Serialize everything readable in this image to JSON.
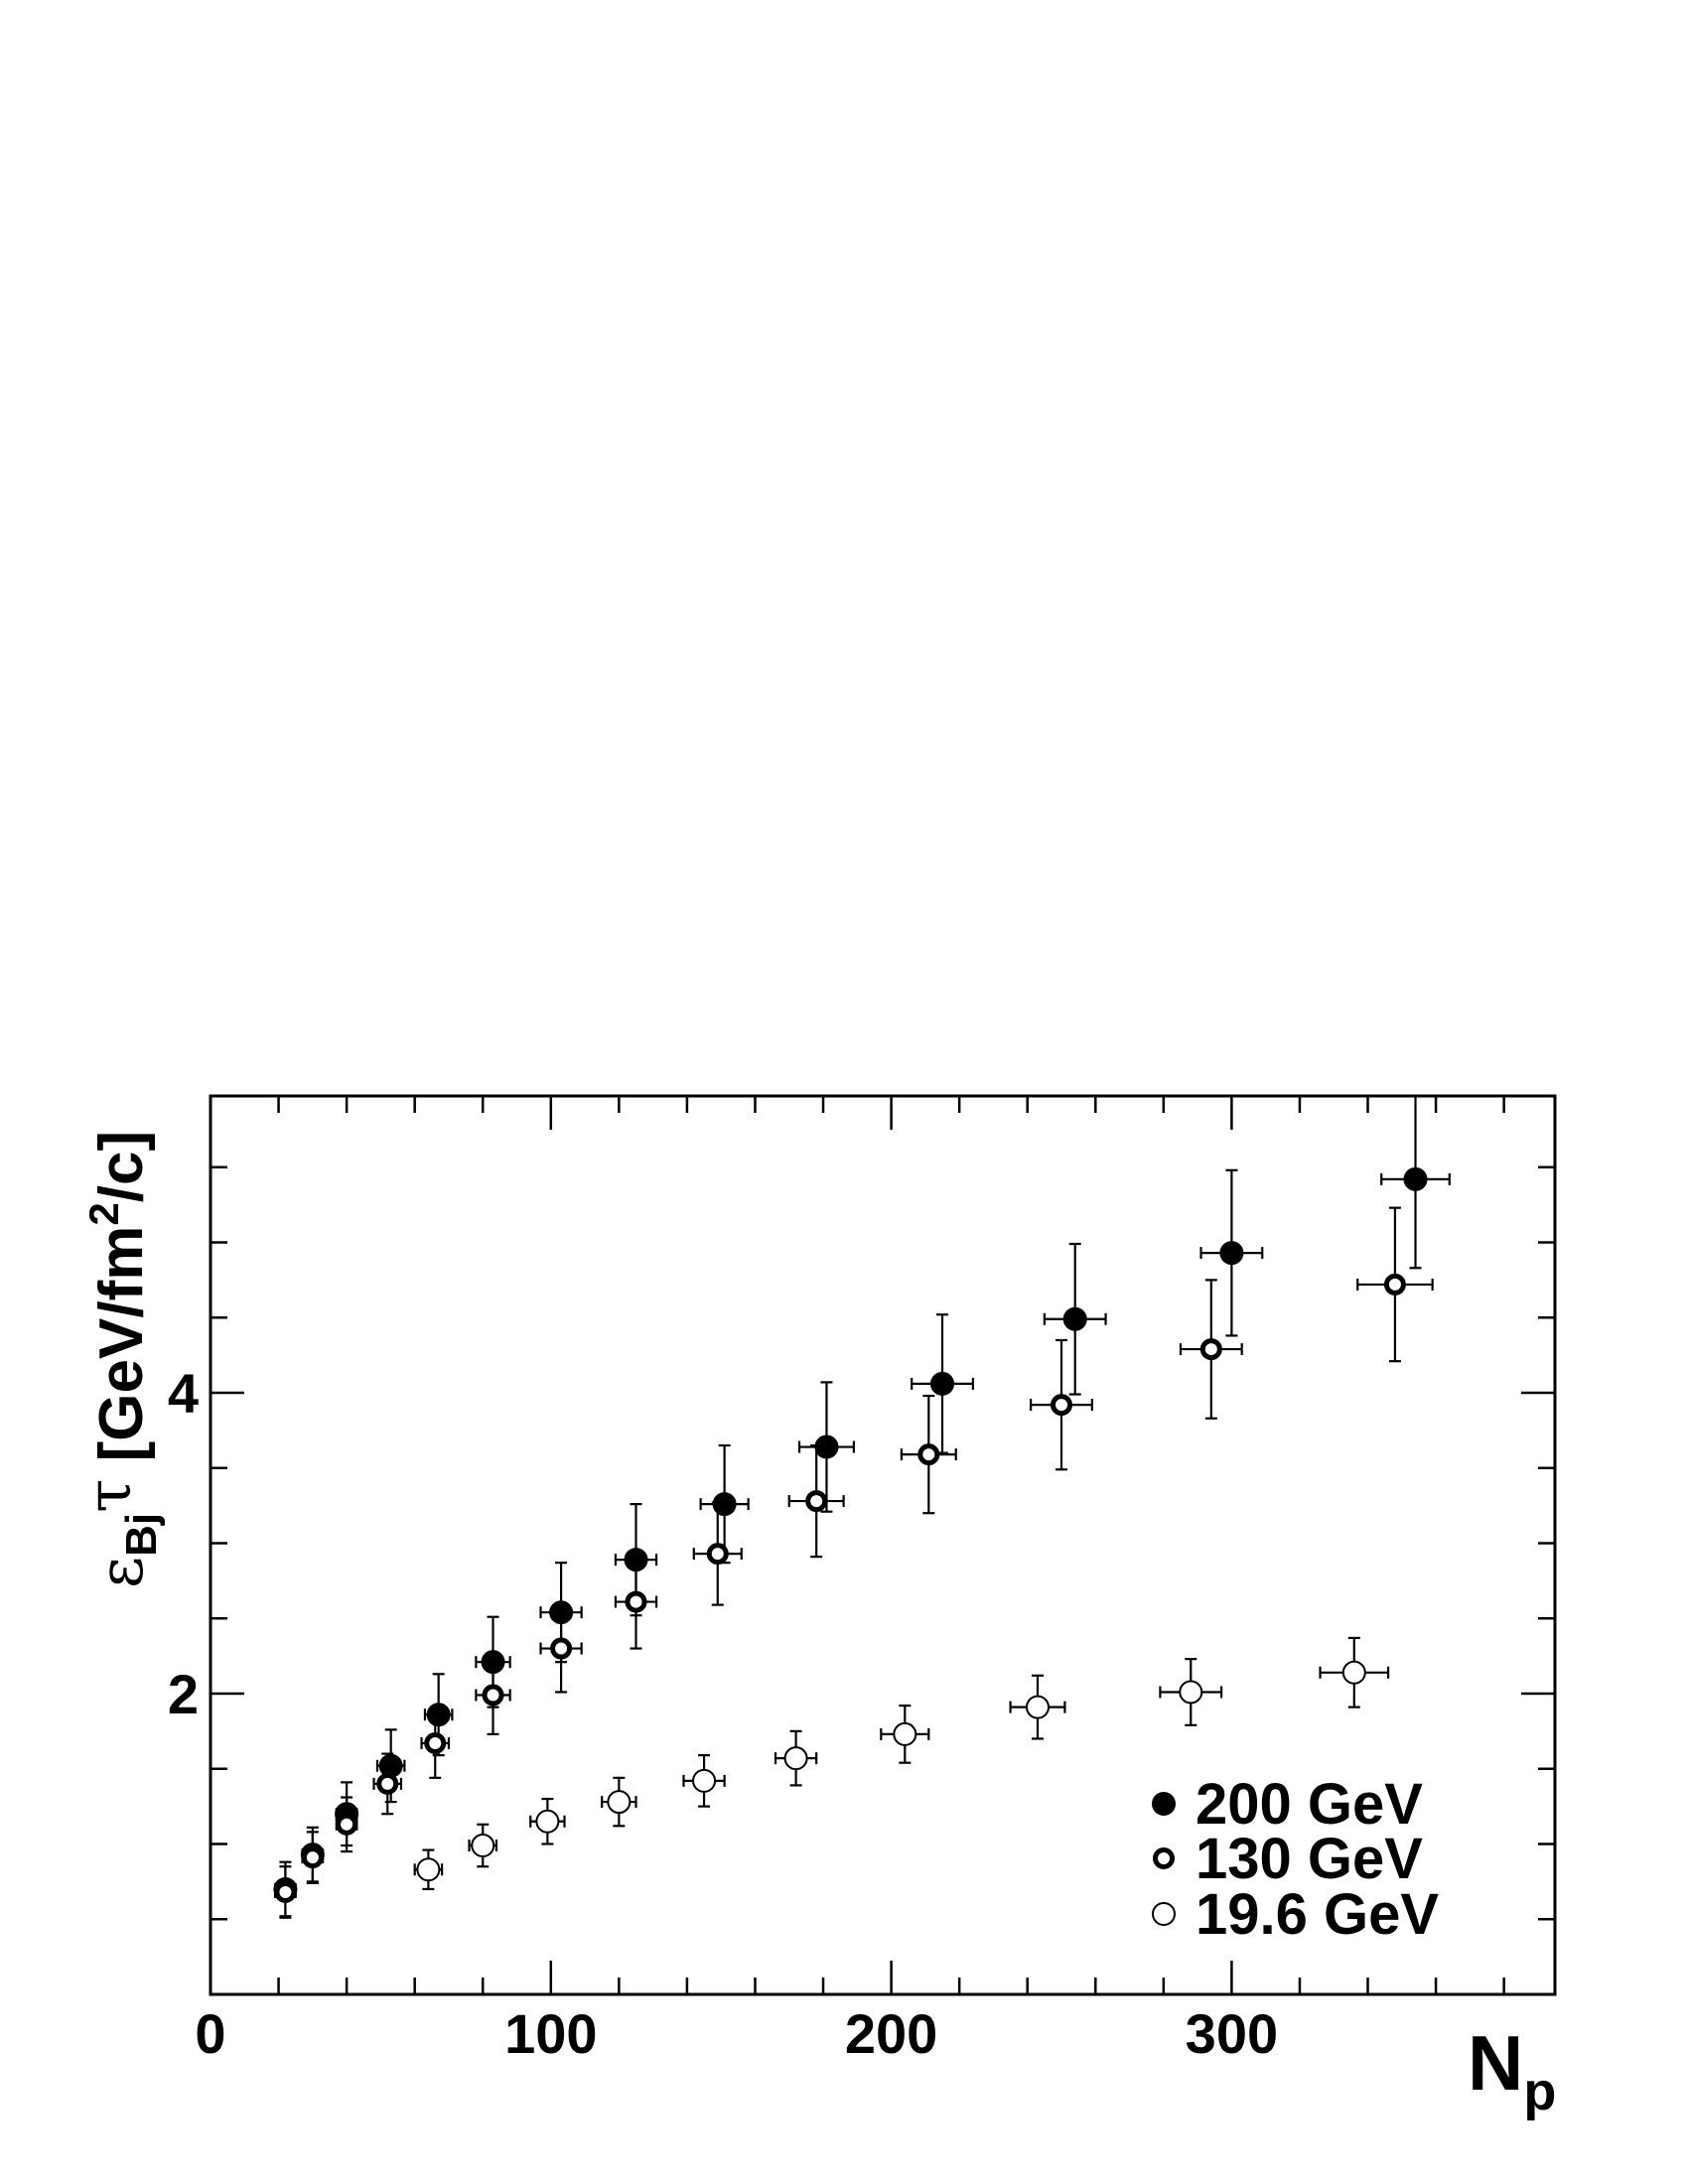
{
  "chart_data": {
    "type": "scatter",
    "xlabel": {
      "main": "N",
      "sub": "p"
    },
    "ylabel": {
      "sym": "ε",
      "sub": "Bj",
      "tau": "τ",
      "unit_pre": " [GeV/fm",
      "unit_sup": "2",
      "unit_post": "/c]"
    },
    "xlim": [
      0,
      395
    ],
    "ylim": [
      0,
      6
    ],
    "x_ticks": [
      0,
      100,
      200,
      300
    ],
    "x_tick_labels": [
      "0",
      "100",
      "200",
      "300"
    ],
    "y_ticks": [
      2,
      4
    ],
    "y_tick_labels": [
      "2",
      "4"
    ],
    "legend_position": "bottom-right",
    "series": [
      {
        "name": "200 GeV",
        "marker": "filled-circle",
        "points": [
          {
            "x": 22,
            "y": 0.7,
            "xerr": 3,
            "yerr": 0.18
          },
          {
            "x": 30,
            "y": 0.93,
            "xerr": 3,
            "yerr": 0.18
          },
          {
            "x": 40,
            "y": 1.2,
            "xerr": 3,
            "yerr": 0.21
          },
          {
            "x": 53,
            "y": 1.52,
            "xerr": 4,
            "yerr": 0.24
          },
          {
            "x": 67,
            "y": 1.86,
            "xerr": 4,
            "yerr": 0.27
          },
          {
            "x": 83,
            "y": 2.21,
            "xerr": 5,
            "yerr": 0.3
          },
          {
            "x": 103,
            "y": 2.54,
            "xerr": 6,
            "yerr": 0.33
          },
          {
            "x": 125,
            "y": 2.89,
            "xerr": 6,
            "yerr": 0.37
          },
          {
            "x": 151,
            "y": 3.26,
            "xerr": 7,
            "yerr": 0.39
          },
          {
            "x": 181,
            "y": 3.64,
            "xerr": 8,
            "yerr": 0.43
          },
          {
            "x": 215,
            "y": 4.06,
            "xerr": 9,
            "yerr": 0.46
          },
          {
            "x": 254,
            "y": 4.49,
            "xerr": 9,
            "yerr": 0.5
          },
          {
            "x": 300,
            "y": 4.93,
            "xerr": 9,
            "yerr": 0.55
          },
          {
            "x": 354,
            "y": 5.42,
            "xerr": 10,
            "yerr": 0.59
          }
        ]
      },
      {
        "name": "130 GeV",
        "marker": "thick-ring",
        "points": [
          {
            "x": 22,
            "y": 0.68,
            "xerr": 3,
            "yerr": 0.17
          },
          {
            "x": 30,
            "y": 0.91,
            "xerr": 3,
            "yerr": 0.17
          },
          {
            "x": 40,
            "y": 1.13,
            "xerr": 3,
            "yerr": 0.18
          },
          {
            "x": 52,
            "y": 1.4,
            "xerr": 4,
            "yerr": 0.2
          },
          {
            "x": 66,
            "y": 1.67,
            "xerr": 4,
            "yerr": 0.23
          },
          {
            "x": 83,
            "y": 1.99,
            "xerr": 5,
            "yerr": 0.26
          },
          {
            "x": 103,
            "y": 2.3,
            "xerr": 6,
            "yerr": 0.29
          },
          {
            "x": 125,
            "y": 2.61,
            "xerr": 6,
            "yerr": 0.31
          },
          {
            "x": 149,
            "y": 2.93,
            "xerr": 7,
            "yerr": 0.34
          },
          {
            "x": 178,
            "y": 3.28,
            "xerr": 8,
            "yerr": 0.37
          },
          {
            "x": 211,
            "y": 3.59,
            "xerr": 8,
            "yerr": 0.39
          },
          {
            "x": 250,
            "y": 3.92,
            "xerr": 9,
            "yerr": 0.43
          },
          {
            "x": 294,
            "y": 4.29,
            "xerr": 9,
            "yerr": 0.46
          },
          {
            "x": 348,
            "y": 4.72,
            "xerr": 11,
            "yerr": 0.51
          }
        ]
      },
      {
        "name": "19.6 GeV",
        "marker": "open-circle",
        "points": [
          {
            "x": 64,
            "y": 0.83,
            "xerr": 4,
            "yerr": 0.13
          },
          {
            "x": 80,
            "y": 0.99,
            "xerr": 4,
            "yerr": 0.14
          },
          {
            "x": 99,
            "y": 1.15,
            "xerr": 5,
            "yerr": 0.15
          },
          {
            "x": 120,
            "y": 1.28,
            "xerr": 5,
            "yerr": 0.16
          },
          {
            "x": 145,
            "y": 1.42,
            "xerr": 6,
            "yerr": 0.17
          },
          {
            "x": 172,
            "y": 1.57,
            "xerr": 6,
            "yerr": 0.18
          },
          {
            "x": 204,
            "y": 1.73,
            "xerr": 7,
            "yerr": 0.19
          },
          {
            "x": 243,
            "y": 1.91,
            "xerr": 8,
            "yerr": 0.21
          },
          {
            "x": 288,
            "y": 2.01,
            "xerr": 9,
            "yerr": 0.22
          },
          {
            "x": 336,
            "y": 2.14,
            "xerr": 10,
            "yerr": 0.23
          }
        ]
      }
    ]
  }
}
